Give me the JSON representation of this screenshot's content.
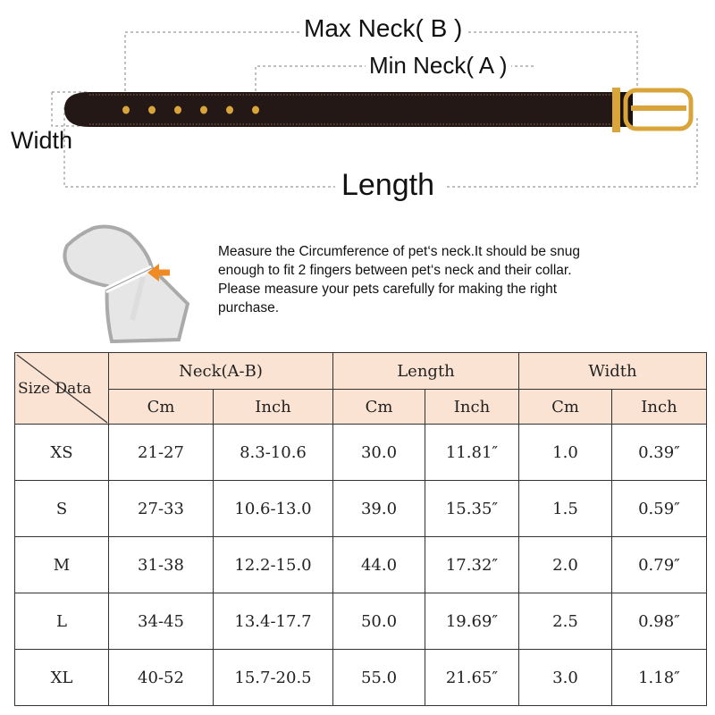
{
  "diagram": {
    "max_neck_label": "Max Neck( B )",
    "min_neck_label": "Min Neck( A )",
    "width_label": "Width",
    "length_label": "Length",
    "colors": {
      "belt": "#231815",
      "hardware": "#d9a43a",
      "header_bg": "#fbe3d3"
    }
  },
  "instructions": [
    "Measure the Circumference of pet‘s neck.It should be snug",
    "enough to fit 2 fingers between pet‘s neck and their collar.",
    "Please measure your pets carefully for making the right",
    "purchase."
  ],
  "table": {
    "corner": "Size Data",
    "groups": [
      "Neck(A-B)",
      "Length",
      "Width"
    ],
    "units": [
      "Cm",
      "Inch",
      "Cm",
      "Inch",
      "Cm",
      "Inch"
    ],
    "rows": [
      [
        "XS",
        "21-27",
        "8.3-10.6",
        "30.0",
        "11.81″",
        "1.0",
        "0.39″"
      ],
      [
        "S",
        "27-33",
        "10.6-13.0",
        "39.0",
        "15.35″",
        "1.5",
        "0.59″"
      ],
      [
        "M",
        "31-38",
        "12.2-15.0",
        "44.0",
        "17.32″",
        "2.0",
        "0.79″"
      ],
      [
        "L",
        "34-45",
        "13.4-17.7",
        "50.0",
        "19.69″",
        "2.5",
        "0.98″"
      ],
      [
        "XL",
        "40-52",
        "15.7-20.5",
        "55.0",
        "21.65″",
        "3.0",
        "1.18″"
      ]
    ]
  }
}
